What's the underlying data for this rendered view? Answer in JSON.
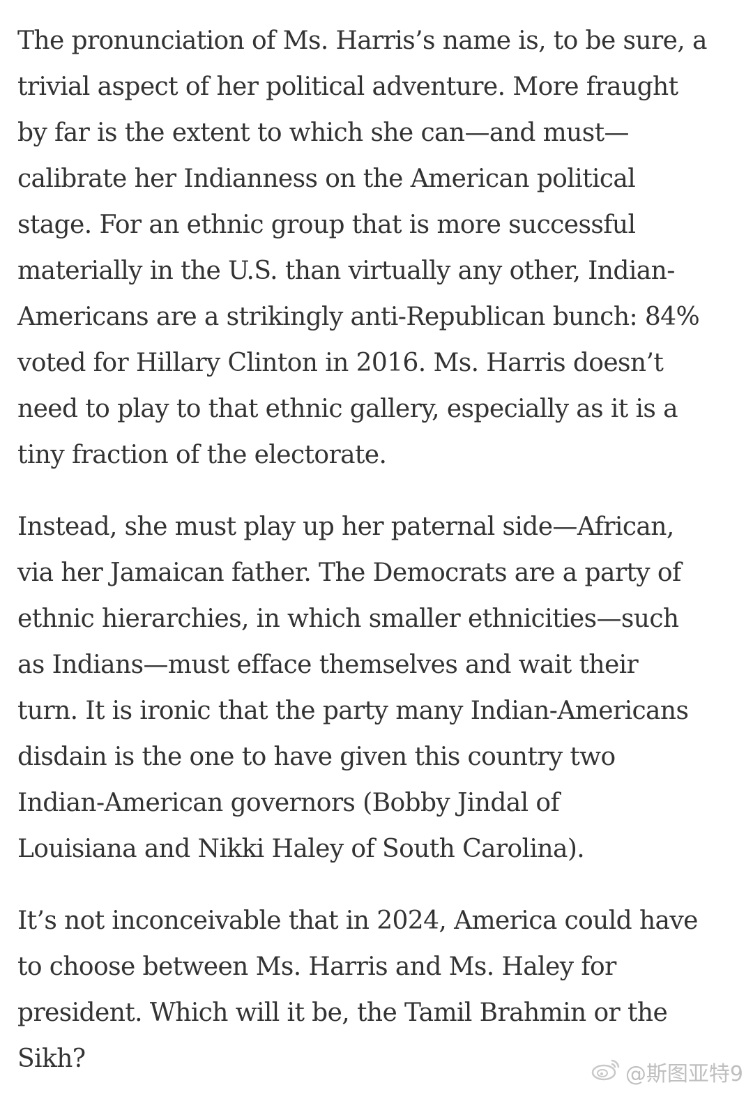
{
  "article": {
    "paragraphs": [
      {
        "lines": [
          "The pronunciation of Ms. Harris’s name is, to be sure, a",
          "trivial aspect of her political adventure. More fraught",
          "by far is the extent to which she can—and must—",
          "calibrate her Indianness on the American political",
          "stage. For an ethnic group that is more successful",
          "materially in the U.S. than virtually any other, Indian-",
          "Americans are a strikingly anti-Republican bunch: 84%",
          "voted for Hillary Clinton in 2016. Ms. Harris doesn’t",
          "need to play to that ethnic gallery, especially as it is a",
          "tiny fraction of the electorate."
        ]
      },
      {
        "lines": [
          "Instead, she must play up her paternal side—African,",
          "via her Jamaican father. The Democrats are a party of",
          "ethnic hierarchies, in which smaller ethnicities—such",
          "as Indians—must efface themselves and wait their",
          "turn. It is ironic that the party many Indian-Americans",
          "disdain is the one to have given this country two",
          "Indian-American governors (Bobby Jindal of",
          "Louisiana and Nikki Haley of South Carolina)."
        ]
      },
      {
        "lines": [
          "It’s not inconceivable that in 2024, America could have",
          "to choose between Ms. Harris and Ms. Haley for",
          "president. Which will it be, the Tamil Brahmin or the",
          "Sikh?"
        ]
      }
    ]
  },
  "watermark": {
    "text": "@斯图亚特9",
    "icon": "weibo-logo-icon"
  }
}
